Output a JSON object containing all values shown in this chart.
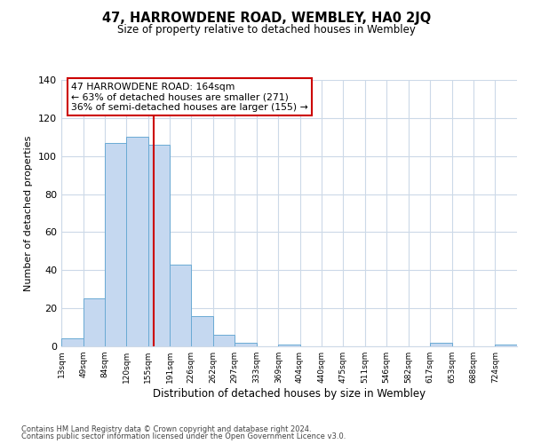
{
  "title": "47, HARROWDENE ROAD, WEMBLEY, HA0 2JQ",
  "subtitle": "Size of property relative to detached houses in Wembley",
  "xlabel": "Distribution of detached houses by size in Wembley",
  "ylabel": "Number of detached properties",
  "bin_labels": [
    "13sqm",
    "49sqm",
    "84sqm",
    "120sqm",
    "155sqm",
    "191sqm",
    "226sqm",
    "262sqm",
    "297sqm",
    "333sqm",
    "369sqm",
    "404sqm",
    "440sqm",
    "475sqm",
    "511sqm",
    "546sqm",
    "582sqm",
    "617sqm",
    "653sqm",
    "688sqm",
    "724sqm"
  ],
  "bar_heights": [
    4,
    25,
    107,
    110,
    106,
    43,
    16,
    6,
    2,
    0,
    1,
    0,
    0,
    0,
    0,
    0,
    0,
    2,
    0,
    0,
    1
  ],
  "bar_color": "#c5d8f0",
  "bar_edge_color": "#6aaad4",
  "property_line_x": 164,
  "bin_edges": [
    13,
    49,
    84,
    120,
    155,
    191,
    226,
    262,
    297,
    333,
    369,
    404,
    440,
    475,
    511,
    546,
    582,
    617,
    653,
    688,
    724,
    760
  ],
  "annotation_title": "47 HARROWDENE ROAD: 164sqm",
  "annotation_line1": "← 63% of detached houses are smaller (271)",
  "annotation_line2": "36% of semi-detached houses are larger (155) →",
  "annotation_box_color": "#ffffff",
  "annotation_box_edge_color": "#cc0000",
  "vline_color": "#cc0000",
  "ylim": [
    0,
    140
  ],
  "yticks": [
    0,
    20,
    40,
    60,
    80,
    100,
    120,
    140
  ],
  "footer1": "Contains HM Land Registry data © Crown copyright and database right 2024.",
  "footer2": "Contains public sector information licensed under the Open Government Licence v3.0.",
  "background_color": "#ffffff",
  "grid_color": "#ccd9e8"
}
